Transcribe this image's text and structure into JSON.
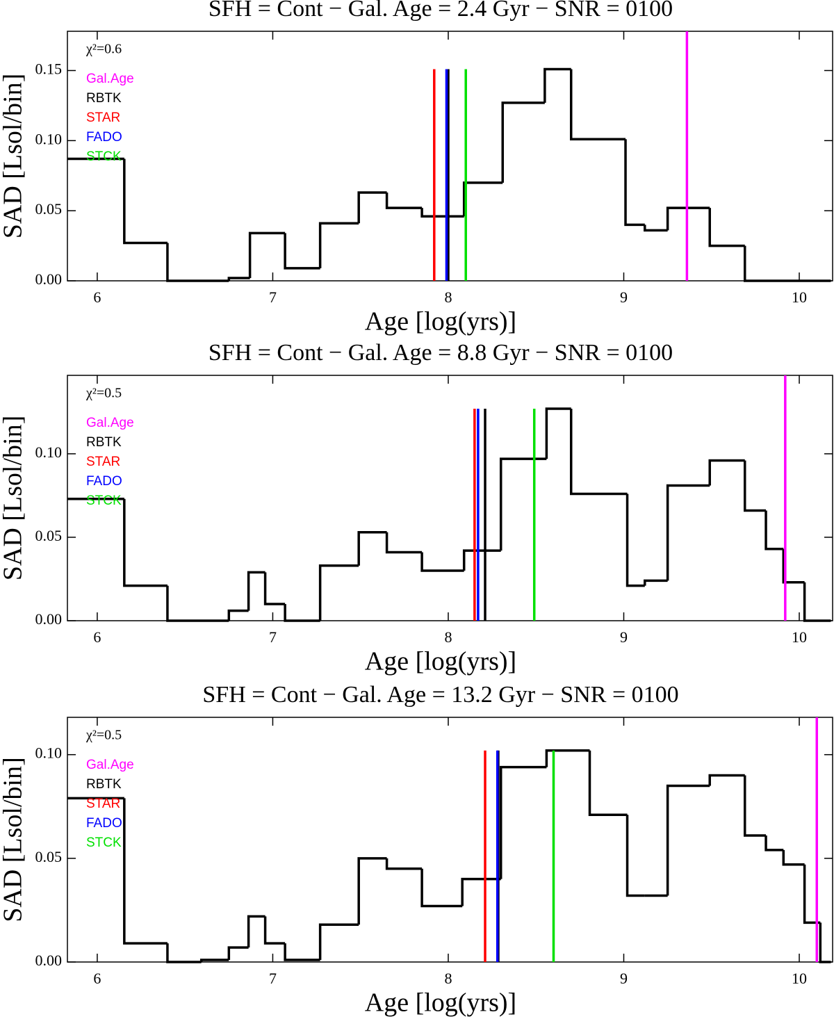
{
  "chart_data": [
    {
      "type": "histogram",
      "title": "SFH = Cont − Gal. Age = 2.4 Gyr − SNR = 0100",
      "x_label": "Age [log(yrs)]",
      "y_label": "SAD [Lsol/bin]",
      "annotation": "χ²=0.6",
      "bins": [
        5.83,
        6.154,
        6.4,
        6.75,
        6.87,
        7.07,
        7.27,
        7.49,
        7.65,
        7.85,
        8.09,
        8.31,
        8.55,
        8.7,
        9.01,
        9.12,
        9.25,
        9.49,
        9.69,
        10.18
      ],
      "values": [
        0.087,
        0.027,
        0,
        0.002,
        0.034,
        0.009,
        0.041,
        0.063,
        0.052,
        0.046,
        0.07,
        0.127,
        0.151,
        0.101,
        0.04,
        0.036,
        0.052,
        0.025,
        0
      ],
      "color": "#000000",
      "lines": [
        {
          "name": "Gal.Age",
          "color": "#ff00ff",
          "value": 9.36
        },
        {
          "name": "RBTK",
          "color": "#000000",
          "value": 8.0
        },
        {
          "name": "STAR",
          "color": "#ff0000",
          "value": 7.92
        },
        {
          "name": "FADO",
          "color": "#0000ff",
          "value": 7.99
        },
        {
          "name": "STCK",
          "color": "#00e000",
          "value": 8.1
        }
      ],
      "xlim": [
        5.83,
        10.19
      ],
      "ylim": [
        0,
        0.178
      ],
      "xticks": [
        6,
        7,
        8,
        9,
        10
      ],
      "yticks": [
        {
          "value": 0,
          "label": "0.00"
        },
        {
          "value": 0.05,
          "label": "0.05"
        },
        {
          "value": 0.1,
          "label": "0.10"
        },
        {
          "value": 0.15,
          "label": "0.15"
        }
      ]
    },
    {
      "type": "histogram",
      "title": "SFH = Cont − Gal. Age = 8.8 Gyr − SNR = 0100",
      "x_label": "Age [log(yrs)]",
      "y_label": "SAD [Lsol/bin]",
      "annotation": "χ²=0.5",
      "bins": [
        5.83,
        6.154,
        6.4,
        6.75,
        6.862,
        6.957,
        7.07,
        7.27,
        7.49,
        7.65,
        7.85,
        8.09,
        8.3,
        8.56,
        8.7,
        9.02,
        9.12,
        9.25,
        9.49,
        9.69,
        9.81,
        9.91,
        10.03,
        10.18
      ],
      "values": [
        0.073,
        0.021,
        0,
        0.006,
        0.029,
        0.01,
        0,
        0.033,
        0.053,
        0.041,
        0.03,
        0.042,
        0.097,
        0.127,
        0.076,
        0.021,
        0.024,
        0.081,
        0.096,
        0.066,
        0.043,
        0.023,
        0
      ],
      "color": "#000000",
      "lines": [
        {
          "name": "Gal.Age",
          "color": "#ff00ff",
          "value": 9.92
        },
        {
          "name": "RBTK",
          "color": "#000000",
          "value": 8.21
        },
        {
          "name": "STAR",
          "color": "#ff0000",
          "value": 8.15
        },
        {
          "name": "FADO",
          "color": "#0000ff",
          "value": 8.17
        },
        {
          "name": "STCK",
          "color": "#00e000",
          "value": 8.49
        }
      ],
      "xlim": [
        5.83,
        10.19
      ],
      "ylim": [
        0,
        0.147
      ],
      "xticks": [
        6,
        7,
        8,
        9,
        10
      ],
      "yticks": [
        {
          "value": 0,
          "label": "0.00"
        },
        {
          "value": 0.05,
          "label": "0.05"
        },
        {
          "value": 0.1,
          "label": "0.10"
        }
      ]
    },
    {
      "type": "histogram",
      "title": "SFH = Cont − Gal. Age = 13.2 Gyr − SNR = 0100",
      "x_label": "Age [log(yrs)]",
      "y_label": "SAD [Lsol/bin]",
      "annotation": "χ²=0.5",
      "bins": [
        5.83,
        6.154,
        6.4,
        6.593,
        6.75,
        6.862,
        6.957,
        7.07,
        7.27,
        7.49,
        7.65,
        7.85,
        8.08,
        8.3,
        8.56,
        8.806,
        9.02,
        9.12,
        9.25,
        9.49,
        9.69,
        9.81,
        9.91,
        10.03,
        10.12,
        10.18
      ],
      "values": [
        0.079,
        0.009,
        0,
        0.001,
        0.007,
        0.022,
        0.009,
        0.001,
        0.018,
        0.05,
        0.045,
        0.027,
        0.04,
        0.094,
        0.102,
        0.071,
        0.032,
        0.032,
        0.085,
        0.09,
        0.061,
        0.054,
        0.047,
        0.019,
        0
      ],
      "color": "#000000",
      "lines": [
        {
          "name": "Gal.Age",
          "color": "#ff00ff",
          "value": 10.1
        },
        {
          "name": "RBTK",
          "color": "#000000",
          "value": 8.285
        },
        {
          "name": "STAR",
          "color": "#ff0000",
          "value": 8.21
        },
        {
          "name": "FADO",
          "color": "#0000ff",
          "value": 8.28
        },
        {
          "name": "STCK",
          "color": "#00e000",
          "value": 8.6
        }
      ],
      "xlim": [
        5.83,
        10.19
      ],
      "ylim": [
        0,
        0.118
      ],
      "xticks": [
        6,
        7,
        8,
        9,
        10
      ],
      "yticks": [
        {
          "value": 0,
          "label": "0.00"
        },
        {
          "value": 0.05,
          "label": "0.05"
        },
        {
          "value": 0.1,
          "label": "0.10"
        }
      ]
    }
  ]
}
